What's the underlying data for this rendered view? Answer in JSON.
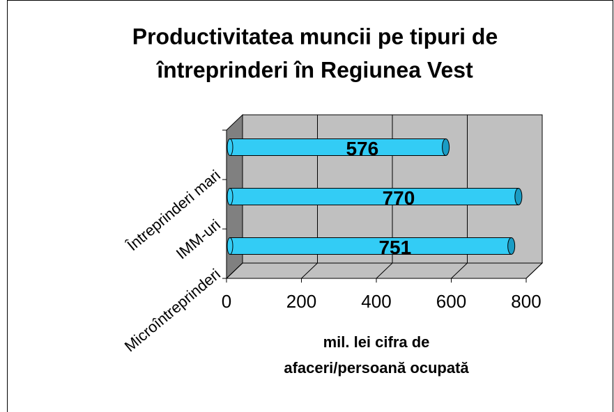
{
  "chart_data": {
    "type": "bar",
    "orientation": "horizontal",
    "title": [
      "Productivitatea muncii pe tipuri de",
      "întreprinderi în Regiunea Vest"
    ],
    "categories": [
      "Microîntreprinderi",
      "IMM-uri",
      "Întreprinderi mari"
    ],
    "values": [
      751,
      770,
      576
    ],
    "color": "#33ccf5",
    "xlim": [
      0,
      800
    ],
    "xticks": [
      0,
      200,
      400,
      600,
      800
    ],
    "xlabel": [
      "mil. lei cifra de",
      "afaceri/persoană ocupată"
    ],
    "grid": true
  }
}
